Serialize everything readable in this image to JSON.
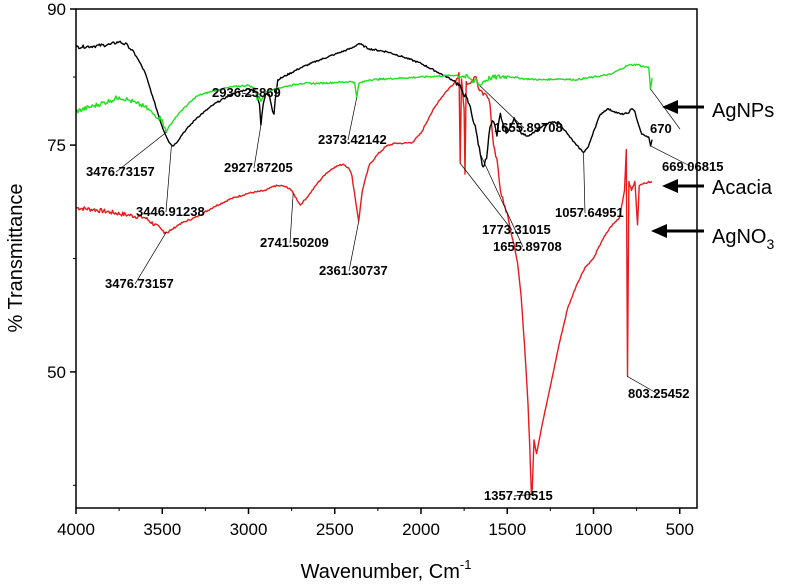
{
  "chart_data": {
    "type": "line",
    "xlabel": "Wavenumber, Cm",
    "xlabel_sup": "-1",
    "ylabel": "% Transmittance",
    "xlim": [
      4000,
      400
    ],
    "ylim": [
      35,
      90
    ],
    "x_ticks": [
      4000,
      3500,
      3000,
      2500,
      2000,
      1500,
      1000,
      500
    ],
    "y_ticks": [
      50,
      75,
      90
    ],
    "grid": false,
    "series": [
      {
        "name": "Acacia",
        "color": "#000000",
        "points": [
          [
            4000,
            85.8
          ],
          [
            3900,
            85.9
          ],
          [
            3800,
            86.1
          ],
          [
            3750,
            86.4
          ],
          [
            3700,
            86.0
          ],
          [
            3650,
            84.8
          ],
          [
            3600,
            83.0
          ],
          [
            3550,
            80.0
          ],
          [
            3500,
            77.0
          ],
          [
            3460,
            75.3
          ],
          [
            3440,
            74.9
          ],
          [
            3420,
            75.2
          ],
          [
            3380,
            76.3
          ],
          [
            3300,
            78.0
          ],
          [
            3200,
            79.5
          ],
          [
            3100,
            80.6
          ],
          [
            3000,
            81.2
          ],
          [
            2960,
            81.0
          ],
          [
            2945,
            80.0
          ],
          [
            2936,
            79.5
          ],
          [
            2928,
            77.2
          ],
          [
            2915,
            79.5
          ],
          [
            2900,
            80.7
          ],
          [
            2880,
            80.6
          ],
          [
            2860,
            78.7
          ],
          [
            2852,
            78.4
          ],
          [
            2845,
            80.0
          ],
          [
            2830,
            82.2
          ],
          [
            2700,
            83.5
          ],
          [
            2600,
            84.3
          ],
          [
            2500,
            85.0
          ],
          [
            2400,
            85.7
          ],
          [
            2360,
            86.2
          ],
          [
            2300,
            85.6
          ],
          [
            2200,
            85.3
          ],
          [
            2100,
            84.7
          ],
          [
            2000,
            84.0
          ],
          [
            1900,
            83.0
          ],
          [
            1800,
            82.0
          ],
          [
            1760,
            81.0
          ],
          [
            1720,
            79.5
          ],
          [
            1680,
            76.5
          ],
          [
            1656,
            74.0
          ],
          [
            1640,
            72.6
          ],
          [
            1620,
            73.5
          ],
          [
            1600,
            77.0
          ],
          [
            1580,
            77.6
          ],
          [
            1560,
            76.0
          ],
          [
            1540,
            78.5
          ],
          [
            1520,
            77.0
          ],
          [
            1500,
            76.4
          ],
          [
            1480,
            77.0
          ],
          [
            1460,
            78.0
          ],
          [
            1440,
            77.2
          ],
          [
            1420,
            76.3
          ],
          [
            1380,
            76.0
          ],
          [
            1340,
            76.5
          ],
          [
            1300,
            77.0
          ],
          [
            1250,
            77.5
          ],
          [
            1200,
            77.5
          ],
          [
            1150,
            76.2
          ],
          [
            1100,
            75.0
          ],
          [
            1058,
            74.2
          ],
          [
            1030,
            74.8
          ],
          [
            1000,
            76.5
          ],
          [
            960,
            78.4
          ],
          [
            920,
            79.0
          ],
          [
            880,
            78.7
          ],
          [
            840,
            78.4
          ],
          [
            800,
            78.5
          ],
          [
            780,
            79.0
          ],
          [
            760,
            78.7
          ],
          [
            740,
            77.3
          ],
          [
            720,
            76.2
          ],
          [
            700,
            76.0
          ],
          [
            680,
            75.9
          ],
          [
            669,
            74.9
          ],
          [
            660,
            75.6
          ]
        ]
      },
      {
        "name": "AgNPs",
        "color": "#1ee11e",
        "points": [
          [
            4000,
            78.7
          ],
          [
            3900,
            79.3
          ],
          [
            3800,
            79.9
          ],
          [
            3750,
            80.3
          ],
          [
            3700,
            80.0
          ],
          [
            3650,
            79.6
          ],
          [
            3600,
            79.2
          ],
          [
            3550,
            78.4
          ],
          [
            3500,
            77.8
          ],
          [
            3477,
            76.4
          ],
          [
            3460,
            77.1
          ],
          [
            3430,
            77.8
          ],
          [
            3400,
            78.6
          ],
          [
            3300,
            80.4
          ],
          [
            3200,
            81.0
          ],
          [
            3100,
            81.4
          ],
          [
            3000,
            81.6
          ],
          [
            2960,
            81.2
          ],
          [
            2950,
            80.0
          ],
          [
            2936,
            80.3
          ],
          [
            2928,
            79.8
          ],
          [
            2900,
            80.9
          ],
          [
            2850,
            81.2
          ],
          [
            2700,
            81.8
          ],
          [
            2600,
            81.8
          ],
          [
            2500,
            81.9
          ],
          [
            2400,
            82.0
          ],
          [
            2385,
            81.9
          ],
          [
            2373,
            80.2
          ],
          [
            2360,
            81.8
          ],
          [
            2300,
            82.2
          ],
          [
            2200,
            82.3
          ],
          [
            2100,
            82.4
          ],
          [
            2000,
            82.5
          ],
          [
            1900,
            82.6
          ],
          [
            1800,
            82.7
          ],
          [
            1760,
            82.6
          ],
          [
            1720,
            82.4
          ],
          [
            1700,
            81.9
          ],
          [
            1680,
            82.3
          ],
          [
            1656,
            81.5
          ],
          [
            1640,
            82.0
          ],
          [
            1600,
            82.4
          ],
          [
            1500,
            82.6
          ],
          [
            1400,
            82.3
          ],
          [
            1300,
            82.2
          ],
          [
            1200,
            82.3
          ],
          [
            1100,
            82.2
          ],
          [
            1000,
            82.5
          ],
          [
            900,
            82.8
          ],
          [
            850,
            83.3
          ],
          [
            800,
            83.8
          ],
          [
            750,
            83.9
          ],
          [
            700,
            83.6
          ],
          [
            680,
            83.6
          ],
          [
            670,
            81.2
          ],
          [
            660,
            82.4
          ]
        ]
      },
      {
        "name": "AgNO3",
        "color": "#e81a1a",
        "points": [
          [
            4000,
            68.1
          ],
          [
            3900,
            67.9
          ],
          [
            3800,
            67.6
          ],
          [
            3700,
            67.3
          ],
          [
            3600,
            67.0
          ],
          [
            3500,
            65.6
          ],
          [
            3477,
            65.4
          ],
          [
            3450,
            65.6
          ],
          [
            3400,
            66.3
          ],
          [
            3300,
            67.1
          ],
          [
            3200,
            68.2
          ],
          [
            3100,
            69.1
          ],
          [
            3000,
            69.7
          ],
          [
            2900,
            70.0
          ],
          [
            2850,
            70.5
          ],
          [
            2800,
            70.5
          ],
          [
            2760,
            70.2
          ],
          [
            2741,
            69.7
          ],
          [
            2700,
            68.4
          ],
          [
            2650,
            69.5
          ],
          [
            2600,
            70.8
          ],
          [
            2550,
            71.9
          ],
          [
            2500,
            72.6
          ],
          [
            2450,
            72.9
          ],
          [
            2420,
            72.5
          ],
          [
            2400,
            71.6
          ],
          [
            2380,
            69.0
          ],
          [
            2361,
            66.6
          ],
          [
            2340,
            70.0
          ],
          [
            2300,
            72.8
          ],
          [
            2250,
            74.0
          ],
          [
            2200,
            74.9
          ],
          [
            2150,
            75.2
          ],
          [
            2100,
            75.2
          ],
          [
            2050,
            75.3
          ],
          [
            2000,
            76.3
          ],
          [
            1950,
            78.2
          ],
          [
            1900,
            79.8
          ],
          [
            1850,
            81.0
          ],
          [
            1800,
            82.0
          ],
          [
            1780,
            83.0
          ],
          [
            1773,
            73.0
          ],
          [
            1765,
            82.3
          ],
          [
            1750,
            79.0
          ],
          [
            1745,
            71.8
          ],
          [
            1738,
            82.0
          ],
          [
            1720,
            81.8
          ],
          [
            1700,
            82.0
          ],
          [
            1680,
            82.5
          ],
          [
            1660,
            81.0
          ],
          [
            1640,
            80.5
          ],
          [
            1620,
            80.5
          ],
          [
            1600,
            79.5
          ],
          [
            1580,
            75.0
          ],
          [
            1560,
            73.5
          ],
          [
            1540,
            70.0
          ],
          [
            1520,
            68.5
          ],
          [
            1500,
            67.5
          ],
          [
            1480,
            65.5
          ],
          [
            1460,
            64.0
          ],
          [
            1440,
            62.0
          ],
          [
            1420,
            58.5
          ],
          [
            1400,
            53.0
          ],
          [
            1380,
            46.5
          ],
          [
            1370,
            42.0
          ],
          [
            1360,
            36.5
          ],
          [
            1355,
            37.2
          ],
          [
            1345,
            42.5
          ],
          [
            1330,
            41.0
          ],
          [
            1300,
            44.0
          ],
          [
            1260,
            47.5
          ],
          [
            1200,
            53.0
          ],
          [
            1150,
            57.0
          ],
          [
            1100,
            59.5
          ],
          [
            1050,
            61.5
          ],
          [
            1000,
            62.5
          ],
          [
            950,
            64.5
          ],
          [
            900,
            66.0
          ],
          [
            850,
            67.0
          ],
          [
            820,
            70.0
          ],
          [
            810,
            74.5
          ],
          [
            803,
            49.5
          ],
          [
            795,
            71.0
          ],
          [
            780,
            70.0
          ],
          [
            760,
            71.0
          ],
          [
            745,
            66.2
          ],
          [
            735,
            70.5
          ],
          [
            720,
            70.7
          ],
          [
            700,
            70.8
          ],
          [
            680,
            71.0
          ],
          [
            670,
            70.9
          ],
          [
            660,
            70.9
          ]
        ]
      }
    ],
    "annotations": [
      {
        "text": "3476.73157",
        "series": "AgNPs",
        "x": 3477,
        "y": 76.4
      },
      {
        "text": "3446.91238",
        "series": "Acacia",
        "x": 3447,
        "y": 74.9
      },
      {
        "text": "2936.25869",
        "series": "AgNPs",
        "x": 2936,
        "y": 80.3
      },
      {
        "text": "2927.87205",
        "series": "Acacia",
        "x": 2928,
        "y": 77.2
      },
      {
        "text": "2373.42142",
        "series": "AgNPs",
        "x": 2373,
        "y": 80.2
      },
      {
        "text": "1655.89708",
        "series": "AgNPs",
        "x": 1656,
        "y": 81.5
      },
      {
        "text": "670",
        "series": "AgNPs",
        "x": 670,
        "y": 81.2
      },
      {
        "text": "669.06815",
        "series": "Acacia",
        "x": 669,
        "y": 74.9
      },
      {
        "text": "1773.31015",
        "series": "AgNO3",
        "x": 1773,
        "y": 73.0
      },
      {
        "text": "1655.89708",
        "series": "Acacia",
        "x": 1656,
        "y": 74.0
      },
      {
        "text": "1057.64951",
        "series": "Acacia",
        "x": 1058,
        "y": 74.2
      },
      {
        "text": "3476.73157",
        "series": "AgNO3",
        "x": 3477,
        "y": 65.4
      },
      {
        "text": "2741.50209",
        "series": "AgNO3",
        "x": 2741,
        "y": 69.7
      },
      {
        "text": "2361.30737",
        "series": "AgNO3",
        "x": 2361,
        "y": 66.6
      },
      {
        "text": "803.25452",
        "series": "AgNO3",
        "x": 803,
        "y": 49.5
      },
      {
        "text": "1357.70515",
        "series": "AgNO3",
        "x": 1357,
        "y": 36.5
      }
    ],
    "legend": [
      {
        "label": "AgNPs",
        "series": "AgNPs"
      },
      {
        "label": "Acacia",
        "series": "Acacia"
      },
      {
        "label": "AgNO",
        "sub": "3",
        "series": "AgNO3"
      }
    ]
  }
}
